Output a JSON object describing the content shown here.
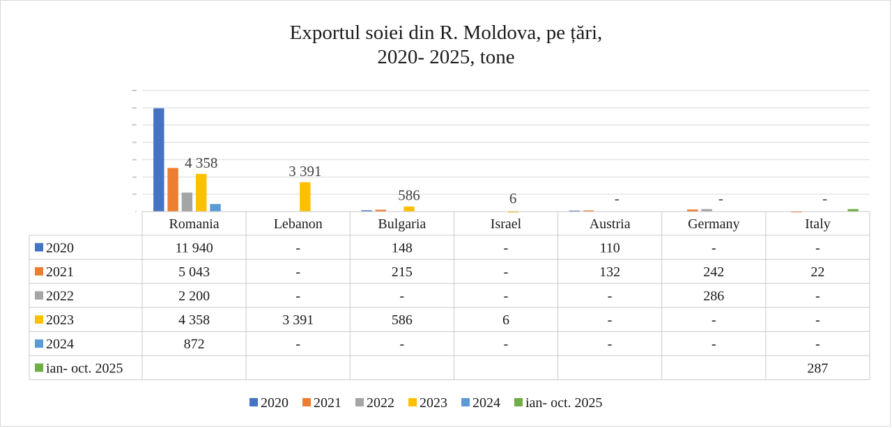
{
  "chart_data": {
    "type": "bar",
    "title": [
      "Exportul soiei din R. Moldova, pe țări,",
      "2020- 2025, tone"
    ],
    "categories": [
      "Romania",
      "Lebanon",
      "Bulgaria",
      "Israel",
      "Austria",
      "Germany",
      "Italy"
    ],
    "ylim": [
      0,
      14000
    ],
    "yticks": [
      0,
      2000,
      4000,
      6000,
      8000,
      10000,
      12000,
      14000
    ],
    "grid": true,
    "legend_position": "bottom",
    "series": [
      {
        "name": "2020",
        "color": "#4472C4",
        "values": [
          11940,
          null,
          148,
          null,
          110,
          null,
          null
        ],
        "cells": [
          "11 940",
          "-",
          "148",
          "-",
          "110",
          "-",
          "-"
        ]
      },
      {
        "name": "2021",
        "color": "#ED7D31",
        "values": [
          5043,
          null,
          215,
          null,
          132,
          242,
          22
        ],
        "cells": [
          "5 043",
          "-",
          "215",
          "-",
          "132",
          "242",
          "22"
        ]
      },
      {
        "name": "2022",
        "color": "#A5A5A5",
        "values": [
          2200,
          null,
          null,
          null,
          null,
          286,
          null
        ],
        "cells": [
          "2 200",
          "-",
          "-",
          "-",
          "-",
          "286",
          "-"
        ]
      },
      {
        "name": "2023",
        "color": "#FFC000",
        "values": [
          4358,
          3391,
          586,
          6,
          null,
          null,
          null
        ],
        "cells": [
          "4 358",
          "3 391",
          "586",
          "6",
          "-",
          "-",
          "-"
        ]
      },
      {
        "name": "2024",
        "color": "#5B9BD5",
        "values": [
          872,
          null,
          null,
          null,
          null,
          null,
          null
        ],
        "cells": [
          "872",
          "-",
          "-",
          "-",
          "-",
          "-",
          "-"
        ]
      },
      {
        "name": "ian- oct. 2025",
        "color": "#70AD47",
        "values": [
          null,
          null,
          null,
          null,
          null,
          null,
          287
        ],
        "cells": [
          "",
          "",
          "",
          "",
          "",
          "",
          "287"
        ]
      }
    ],
    "data_labels": [
      {
        "category": 0,
        "series": 3,
        "text": "4 358"
      },
      {
        "category": 1,
        "series": 3,
        "text": "3 391"
      },
      {
        "category": 2,
        "series": 3,
        "text": "586"
      },
      {
        "category": 3,
        "series": 3,
        "text": "6"
      },
      {
        "category": 4,
        "series": 3,
        "text": "-"
      },
      {
        "category": 5,
        "series": 3,
        "text": "-"
      },
      {
        "category": 6,
        "series": 3,
        "text": "-"
      }
    ]
  }
}
